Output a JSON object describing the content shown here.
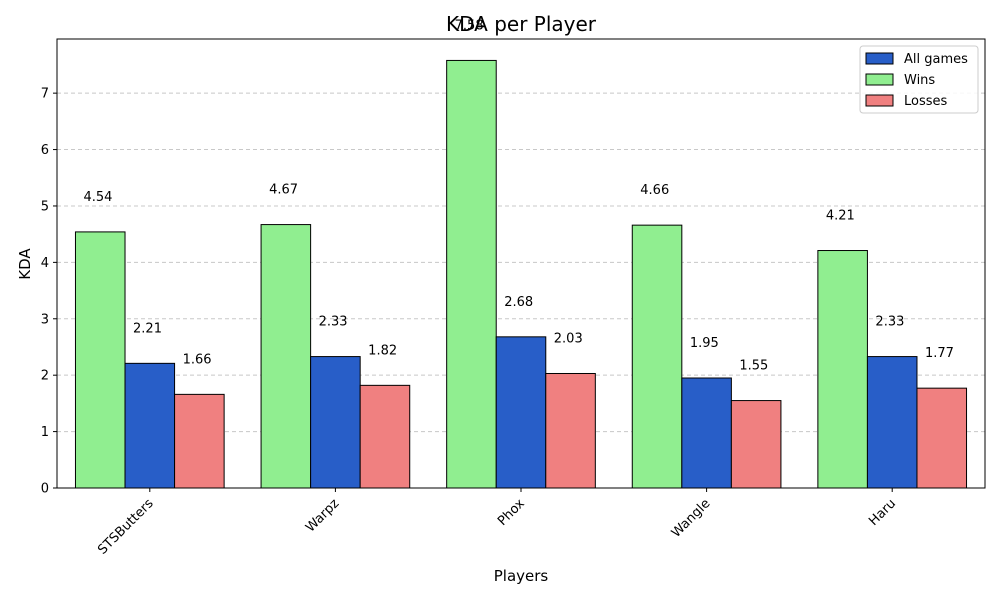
{
  "chart_data": {
    "type": "bar",
    "title": "KDA per Player",
    "xlabel": "Players",
    "ylabel": "KDA",
    "categories": [
      "STSButters",
      "Warpz",
      "Phox",
      "Wangle",
      "Haru"
    ],
    "series": [
      {
        "name": "Wins",
        "color": "#90ee90",
        "values": [
          4.54,
          4.67,
          7.58,
          4.66,
          4.21
        ],
        "labels": [
          "4.54",
          "4.67",
          "7.58",
          "4.66",
          "4.21"
        ]
      },
      {
        "name": "All games",
        "color": "#285ec8",
        "values": [
          2.21,
          2.33,
          2.68,
          1.95,
          2.33
        ],
        "labels": [
          "2.21",
          "2.33",
          "2.68",
          "1.95",
          "2.33"
        ]
      },
      {
        "name": "Losses",
        "color": "#f08080",
        "values": [
          1.66,
          1.82,
          2.03,
          1.55,
          1.77
        ],
        "labels": [
          "1.66",
          "1.82",
          "2.03",
          "1.55",
          "1.77"
        ]
      }
    ],
    "legend_order": [
      "All games",
      "Wins",
      "Losses"
    ],
    "ylim": [
      0,
      7.96
    ],
    "yticks": [
      "0",
      "1",
      "2",
      "3",
      "4",
      "5",
      "6",
      "7"
    ],
    "grid": "y-dashed",
    "legend_position": "top-right"
  }
}
